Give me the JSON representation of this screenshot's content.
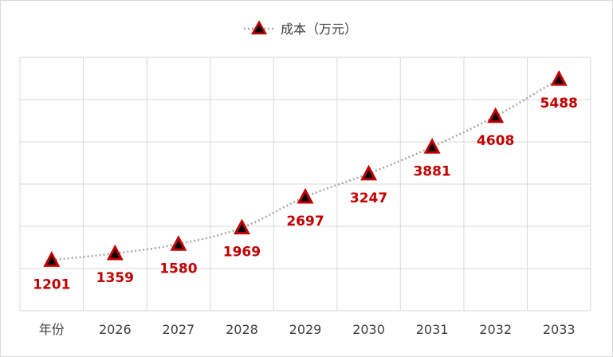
{
  "chart_data": {
    "type": "line",
    "categories": [
      "年份",
      "2026",
      "2027",
      "2028",
      "2029",
      "2030",
      "2031",
      "2032",
      "2033"
    ],
    "series": [
      {
        "name": "成本（万元）",
        "values": [
          1201,
          1359,
          1580,
          1969,
          2697,
          3247,
          3881,
          4608,
          5488
        ]
      }
    ],
    "ylim": [
      0,
      6000
    ],
    "grid": true,
    "legend_position": "top",
    "line_style": "dotted",
    "marker": "triangle",
    "colors": {
      "line": "#a6a6a6",
      "marker_fill": "#000000",
      "marker_stroke": "#c00000",
      "label": "#c00000"
    }
  }
}
